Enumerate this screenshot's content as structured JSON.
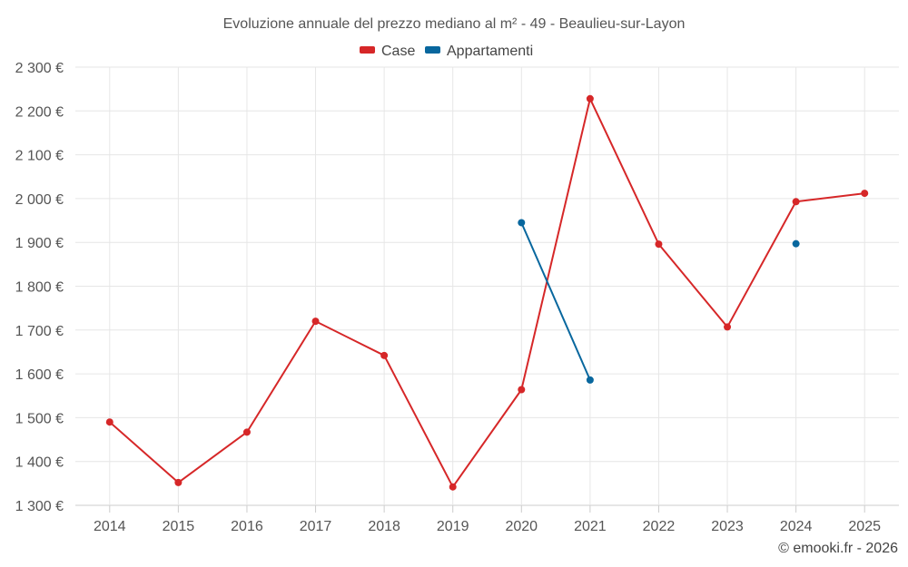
{
  "chart_data": {
    "type": "line",
    "title": "Evoluzione annuale del prezzo mediano al m² - 49 - Beaulieu-sur-Layon",
    "categories": [
      "2014",
      "2015",
      "2016",
      "2017",
      "2018",
      "2019",
      "2020",
      "2021",
      "2022",
      "2023",
      "2024",
      "2025"
    ],
    "series": [
      {
        "name": "Case",
        "color": "#d62728",
        "values": [
          1490,
          1352,
          1467,
          1720,
          1642,
          1342,
          1564,
          2228,
          1896,
          1707,
          1993,
          2012
        ]
      },
      {
        "name": "Appartamenti",
        "color": "#08679e",
        "values": [
          null,
          null,
          null,
          null,
          null,
          null,
          1945,
          1586,
          null,
          null,
          1897,
          null
        ]
      }
    ],
    "ylim": [
      1300,
      2300
    ],
    "yticks": [
      1300,
      1400,
      1500,
      1600,
      1700,
      1800,
      1900,
      2000,
      2100,
      2200,
      2300
    ],
    "ytick_labels": [
      "1 300 €",
      "1 400 €",
      "1 500 €",
      "1 600 €",
      "1 700 €",
      "1 800 €",
      "1 900 €",
      "2 000 €",
      "2 100 €",
      "2 200 €",
      "2 300 €"
    ],
    "xlabel": "",
    "ylabel": "",
    "grid": true,
    "legend_position": "top-center"
  },
  "credit": "© emooki.fr - 2026"
}
